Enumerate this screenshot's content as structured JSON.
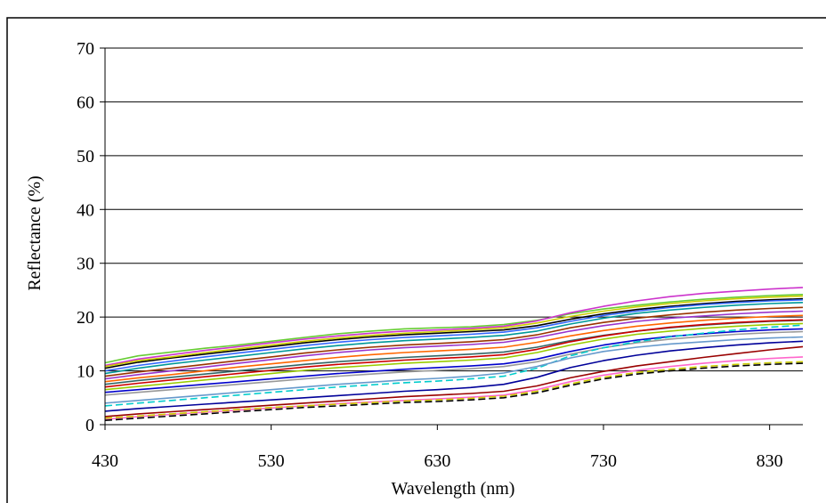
{
  "chart_data": {
    "type": "line",
    "title": "",
    "xlabel": "Wavelength (nm)",
    "ylabel": "Reflectance (%)",
    "xlim": [
      430,
      850
    ],
    "ylim": [
      0,
      70
    ],
    "x_ticks": [
      430,
      530,
      630,
      730,
      830
    ],
    "y_ticks": [
      0,
      10,
      20,
      30,
      40,
      50,
      60,
      70
    ],
    "grid": "horizontal",
    "legend": "none",
    "x": [
      430,
      450,
      470,
      490,
      510,
      530,
      550,
      570,
      590,
      610,
      630,
      650,
      670,
      690,
      710,
      730,
      750,
      770,
      790,
      810,
      830,
      850
    ],
    "series": [
      {
        "color": "#66cc33",
        "values": [
          11.5,
          12.8,
          13.5,
          14.2,
          14.8,
          15.5,
          16.2,
          16.9,
          17.4,
          17.8,
          18.0,
          18.2,
          18.6,
          19.4,
          20.6,
          21.5,
          22.2,
          22.8,
          23.3,
          23.7,
          24.0,
          24.2
        ]
      },
      {
        "color": "#cc33cc",
        "values": [
          11.0,
          12.2,
          13.0,
          13.8,
          14.5,
          15.2,
          15.9,
          16.5,
          17.0,
          17.4,
          17.6,
          17.9,
          18.3,
          19.3,
          20.8,
          22.0,
          23.0,
          23.8,
          24.4,
          24.8,
          25.2,
          25.5
        ]
      },
      {
        "color": "#000000",
        "values": [
          10.5,
          11.6,
          12.4,
          13.1,
          13.8,
          14.5,
          15.2,
          15.8,
          16.3,
          16.7,
          17.0,
          17.3,
          17.6,
          18.4,
          19.6,
          20.6,
          21.4,
          22.0,
          22.5,
          22.9,
          23.2,
          23.4
        ]
      },
      {
        "color": "#cccc00",
        "values": [
          10.8,
          11.9,
          12.6,
          13.4,
          14.1,
          14.8,
          15.5,
          16.1,
          16.6,
          17.0,
          17.3,
          17.6,
          18.0,
          18.9,
          20.1,
          21.1,
          21.9,
          22.5,
          23.0,
          23.4,
          23.7,
          23.9
        ]
      },
      {
        "color": "#3366ff",
        "values": [
          10.0,
          11.0,
          11.8,
          12.6,
          13.3,
          14.0,
          14.7,
          15.3,
          15.8,
          16.2,
          16.5,
          16.8,
          17.2,
          18.0,
          19.2,
          20.3,
          21.1,
          21.8,
          22.3,
          22.7,
          23.0,
          23.2
        ]
      },
      {
        "color": "#009999",
        "values": [
          9.5,
          10.5,
          11.3,
          12.0,
          12.7,
          13.4,
          14.1,
          14.7,
          15.2,
          15.6,
          15.9,
          16.2,
          16.6,
          17.4,
          18.7,
          19.8,
          20.7,
          21.3,
          21.8,
          22.2,
          22.5,
          22.7
        ]
      },
      {
        "color": "#993300",
        "values": [
          9.0,
          9.8,
          10.5,
          11.2,
          11.9,
          12.6,
          13.3,
          13.9,
          14.4,
          14.8,
          15.1,
          15.4,
          15.8,
          16.7,
          18.0,
          19.0,
          19.8,
          20.4,
          20.9,
          21.3,
          21.6,
          21.8
        ]
      },
      {
        "color": "#9933cc",
        "values": [
          8.5,
          9.3,
          10.0,
          10.7,
          11.4,
          12.1,
          12.8,
          13.4,
          13.9,
          14.3,
          14.6,
          14.9,
          15.3,
          16.2,
          17.4,
          18.4,
          19.2,
          19.8,
          20.2,
          20.6,
          20.9,
          21.1
        ]
      },
      {
        "color": "#ff6600",
        "values": [
          8.0,
          8.7,
          9.3,
          10.0,
          10.7,
          11.3,
          11.9,
          12.5,
          13.0,
          13.4,
          13.7,
          14.0,
          14.4,
          15.3,
          16.5,
          17.5,
          18.3,
          18.9,
          19.4,
          19.8,
          20.1,
          20.3
        ]
      },
      {
        "color": "#336666",
        "values": [
          7.5,
          8.2,
          8.8,
          9.4,
          10.0,
          10.6,
          11.2,
          11.7,
          12.1,
          12.5,
          12.8,
          13.1,
          13.5,
          14.4,
          15.6,
          16.6,
          17.4,
          18.0,
          18.5,
          18.9,
          19.2,
          19.4
        ]
      },
      {
        "color": "#cc0000",
        "values": [
          7.0,
          7.7,
          8.3,
          8.9,
          9.5,
          10.1,
          10.7,
          11.2,
          11.6,
          12.0,
          12.3,
          12.6,
          13.0,
          14.0,
          15.4,
          16.5,
          17.4,
          18.1,
          18.6,
          19.0,
          19.3,
          19.5
        ]
      },
      {
        "color": "#99cc00",
        "values": [
          6.5,
          7.1,
          7.7,
          8.3,
          8.9,
          9.5,
          10.1,
          10.6,
          11.0,
          11.4,
          11.7,
          12.0,
          12.4,
          13.4,
          14.8,
          15.9,
          16.8,
          17.4,
          17.9,
          18.3,
          18.6,
          18.8
        ]
      },
      {
        "color": "#0000cc",
        "values": [
          6.0,
          6.5,
          7.0,
          7.5,
          8.0,
          8.5,
          9.0,
          9.5,
          9.9,
          10.3,
          10.6,
          10.9,
          11.3,
          12.2,
          13.6,
          14.8,
          15.7,
          16.4,
          16.9,
          17.3,
          17.6,
          17.8
        ]
      },
      {
        "color": "#999999",
        "values": [
          5.5,
          6.0,
          6.5,
          7.0,
          7.5,
          8.0,
          8.5,
          9.0,
          9.4,
          9.8,
          10.1,
          10.4,
          10.8,
          11.7,
          13.1,
          14.3,
          15.2,
          15.9,
          16.4,
          16.8,
          17.1,
          17.3
        ]
      },
      {
        "color": "#00cccc",
        "dashed": true,
        "values": [
          3.5,
          4.0,
          4.5,
          5.0,
          5.5,
          6.0,
          6.5,
          7.0,
          7.4,
          7.8,
          8.1,
          8.5,
          9.0,
          10.5,
          12.8,
          14.3,
          15.4,
          16.3,
          17.0,
          17.6,
          18.1,
          18.5
        ]
      },
      {
        "color": "#6699cc",
        "values": [
          4.0,
          4.5,
          5.0,
          5.5,
          6.0,
          6.5,
          7.0,
          7.5,
          7.9,
          8.3,
          8.6,
          9.0,
          9.6,
          10.8,
          12.4,
          13.6,
          14.4,
          15.0,
          15.4,
          15.8,
          16.1,
          16.3
        ]
      },
      {
        "color": "#000099",
        "values": [
          2.5,
          3.0,
          3.4,
          3.8,
          4.2,
          4.6,
          5.0,
          5.4,
          5.8,
          6.2,
          6.5,
          6.9,
          7.5,
          8.8,
          10.6,
          11.9,
          12.9,
          13.7,
          14.3,
          14.8,
          15.2,
          15.5
        ]
      },
      {
        "color": "#990000",
        "values": [
          1.5,
          2.0,
          2.4,
          2.8,
          3.2,
          3.6,
          4.0,
          4.4,
          4.8,
          5.2,
          5.5,
          5.8,
          6.2,
          7.2,
          8.7,
          9.9,
          10.9,
          11.7,
          12.5,
          13.2,
          13.9,
          14.5
        ]
      },
      {
        "color": "#ff66cc",
        "values": [
          1.0,
          1.5,
          1.9,
          2.3,
          2.7,
          3.1,
          3.5,
          3.9,
          4.2,
          4.5,
          4.8,
          5.1,
          5.5,
          6.5,
          8.0,
          9.2,
          10.1,
          10.8,
          11.4,
          11.9,
          12.3,
          12.6
        ]
      },
      {
        "color": "#cccc00",
        "dashed": true,
        "values": [
          1.2,
          1.6,
          2.0,
          2.4,
          2.8,
          3.2,
          3.5,
          3.8,
          4.1,
          4.4,
          4.6,
          4.9,
          5.3,
          6.2,
          7.6,
          8.8,
          9.7,
          10.3,
          10.8,
          11.2,
          11.5,
          11.7
        ]
      },
      {
        "color": "#000000",
        "dashed": true,
        "values": [
          0.8,
          1.2,
          1.6,
          2.0,
          2.4,
          2.8,
          3.2,
          3.5,
          3.8,
          4.1,
          4.3,
          4.6,
          5.0,
          5.9,
          7.3,
          8.5,
          9.4,
          10.0,
          10.5,
          10.9,
          11.2,
          11.4
        ]
      }
    ]
  }
}
